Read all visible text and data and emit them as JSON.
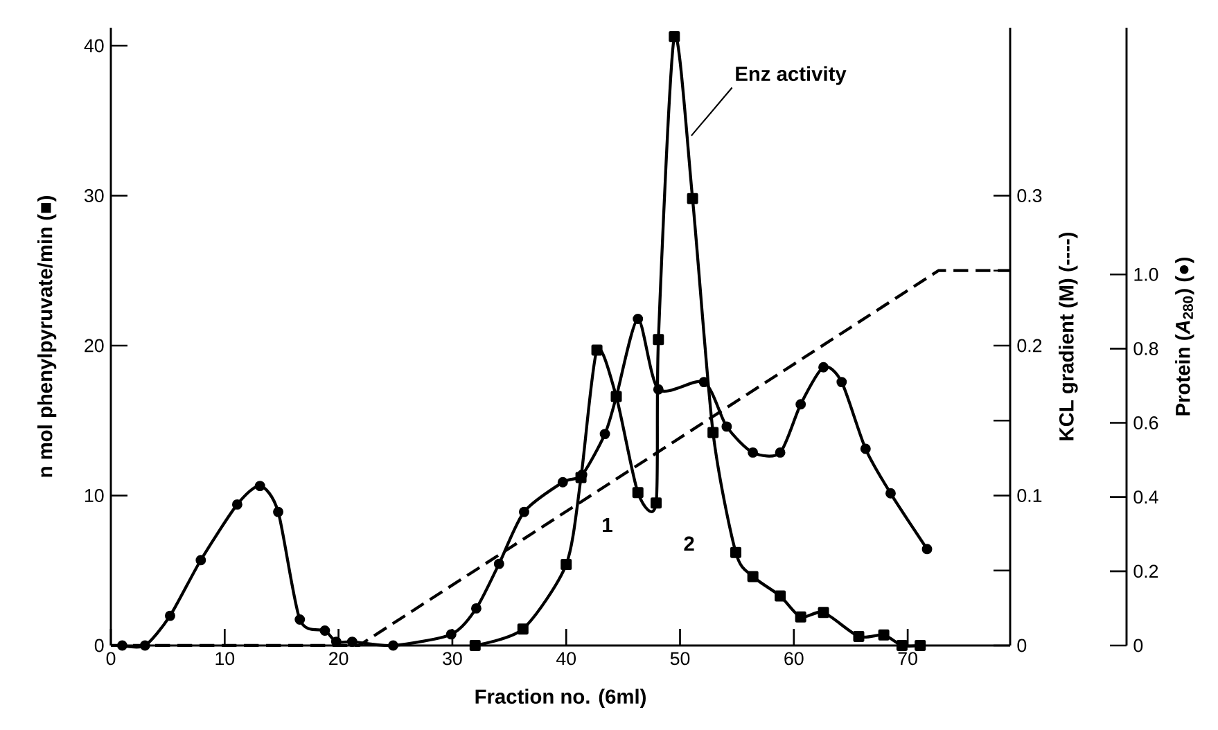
{
  "chart_data": {
    "type": "line",
    "xlabel": "Fraction no. (6ml)",
    "ylabel": "n mol  phenylpyruvate/min (■)",
    "y2label": "KCL gradient (M) (----)",
    "y3label": "Protein (*A*$_{280}$) (●)",
    "xlim": [
      0,
      79
    ],
    "xticks": [
      0,
      10,
      20,
      30,
      40,
      50,
      60,
      70
    ],
    "ylim": [
      0,
      41.2
    ],
    "yticks": [
      0,
      10,
      20,
      30,
      40
    ],
    "y2lim": [
      0,
      0.412
    ],
    "y2ticks": [
      0,
      {
        "value": 0.05,
        "label": null
      },
      0.1,
      {
        "value": 0.15,
        "label": null
      },
      0.2,
      {
        "value": 0.25,
        "label": null
      },
      0.3
    ],
    "y3lim": [
      0,
      1.665
    ],
    "y3ticks": [
      0,
      0.2,
      0.4,
      0.6,
      0.8,
      {
        "value": 1.0,
        "label": "1.0"
      }
    ],
    "series": [
      {
        "color": "#000000",
        "axis": "y",
        "marker": "square",
        "line_style": "solid",
        "x": [
          32,
          36.2,
          40,
          41.3,
          42.7,
          44.4,
          46.3,
          47.9,
          48.1,
          49.5,
          51.1,
          52.9,
          54.9,
          56.4,
          58.8,
          60.6,
          62.6,
          65.7,
          67.9,
          69.5,
          71.1
        ],
        "values": [
          0,
          1.1,
          5.4,
          11.2,
          19.7,
          16.6,
          10.2,
          9.5,
          20.4,
          40.6,
          29.8,
          14.2,
          6.2,
          4.6,
          3.3,
          1.9,
          2.2,
          0.6,
          0.7,
          0,
          0
        ]
      },
      {
        "color": "#000000",
        "axis": "y2",
        "marker": "none",
        "line_style": "dashed",
        "x": [
          0,
          21.8,
          72.7,
          79
        ],
        "values": [
          0,
          0,
          0.25,
          0.25
        ]
      },
      {
        "color": "#000000",
        "axis": "y3",
        "marker": "circle",
        "line_style": "solid",
        "x": [
          1,
          3,
          5.2,
          7.9,
          11.1,
          13.1,
          14.7,
          16.6,
          18.8,
          19.8,
          21.2,
          24.8,
          29.9,
          32.1,
          34.1,
          36.3,
          39.7,
          41.4,
          43.4,
          44.4,
          46.3,
          48.1,
          52.1,
          54.1,
          56.4,
          58.8,
          60.6,
          62.6,
          64.2,
          66.3,
          68.5,
          71.7
        ],
        "values": [
          0,
          0,
          0.08,
          0.23,
          0.38,
          0.43,
          0.36,
          0.07,
          0.04,
          0.01,
          0.01,
          0,
          0.03,
          0.1,
          0.22,
          0.36,
          0.44,
          0.46,
          0.57,
          0.67,
          0.88,
          0.69,
          0.71,
          0.59,
          0.52,
          0.52,
          0.65,
          0.75,
          0.71,
          0.53,
          0.41,
          0.26
        ]
      }
    ],
    "annotations": [
      {
        "text": "Enz activity",
        "x": 51,
        "y": 34
      },
      "1",
      "2"
    ]
  }
}
